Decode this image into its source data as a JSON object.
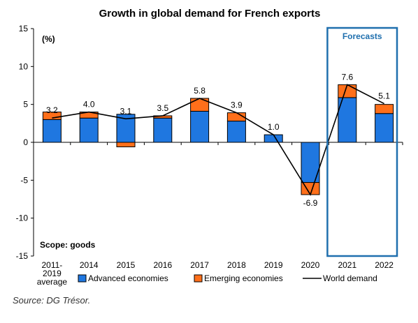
{
  "chart_data": {
    "type": "bar",
    "title": "Growth in global demand for French exports",
    "categories": [
      [
        "2011-",
        "2019",
        "average"
      ],
      [
        "2014"
      ],
      [
        "2015"
      ],
      [
        "2016"
      ],
      [
        "2017"
      ],
      [
        "2018"
      ],
      [
        "2019"
      ],
      [
        "2020"
      ],
      [
        "2021"
      ],
      [
        "2022"
      ]
    ],
    "series": [
      {
        "name": "Advanced economies",
        "kind": "stacked-bar",
        "color": "#1f77e0",
        "values": [
          3.0,
          3.2,
          3.7,
          3.2,
          4.1,
          2.8,
          1.0,
          -5.3,
          5.9,
          3.8
        ]
      },
      {
        "name": "Emerging economies",
        "kind": "stacked-bar",
        "color": "#ff6f1a",
        "values": [
          1.0,
          0.8,
          -0.6,
          0.3,
          1.7,
          1.1,
          0.0,
          -1.6,
          1.7,
          1.2
        ]
      },
      {
        "name": "World demand",
        "kind": "line",
        "color": "#000000",
        "values": [
          3.2,
          4.0,
          3.1,
          3.5,
          5.8,
          3.9,
          1.0,
          -6.9,
          7.6,
          5.1
        ]
      }
    ],
    "data_labels": [
      "3.2",
      "4.0",
      "3.1",
      "3.5",
      "5.8",
      "3.9",
      "1.0",
      "-6.9",
      "7.6",
      "5.1"
    ],
    "ylim": [
      -15,
      15
    ],
    "yticks": [
      "15",
      "10",
      "5",
      "0",
      "-5",
      "-10",
      "-15"
    ],
    "ylabel": "(%)",
    "annotation": "Scope: goods",
    "forecast_label": "Forecasts",
    "forecast_categories": [
      "2021",
      "2022"
    ],
    "forecast_color": "#1f6fae",
    "grid": false,
    "legend_position": "bottom"
  },
  "source": "Source: DG Trésor."
}
